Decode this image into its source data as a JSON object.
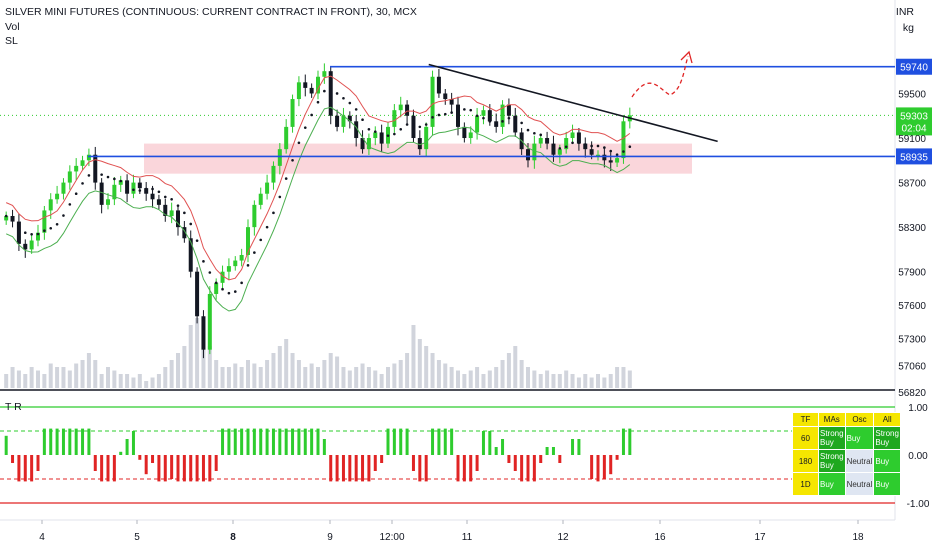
{
  "header": {
    "title": "SILVER MINI FUTURES (CONTINUOUS: CURRENT CONTRACT IN FRONT), 30, MCX",
    "line2": "Vol",
    "line3": "SL"
  },
  "currency": "INR",
  "unit": "kg",
  "colors": {
    "up": "#2ecc2e",
    "down": "#131722",
    "blue_line": "#1f4fe0",
    "zone": "#f8c8cf",
    "ma_red": "#e05252",
    "ma_green": "#4caf50",
    "vol": "#d1d4dc"
  },
  "chart_data": {
    "type": "candlestick",
    "x_ticks": [
      "4",
      "5",
      "8",
      "9",
      "12:00",
      "11",
      "12",
      "16",
      "17",
      "18"
    ],
    "price_axis": [
      "59500",
      "59100",
      "58700",
      "58300",
      "57900",
      "57600",
      "57300",
      "57060",
      "56820"
    ],
    "ylim": [
      56820,
      59980
    ],
    "levels": [
      {
        "label": "59740",
        "value": 59740,
        "color": "#1f4fe0"
      },
      {
        "label": "58935",
        "value": 58935,
        "color": "#1f4fe0"
      }
    ],
    "last_price": {
      "label": "59303",
      "countdown": "02:04",
      "value": 59303
    },
    "support_zone": [
      58780,
      59050
    ],
    "trendline": [
      [
        0.46,
        59760
      ],
      [
        0.77,
        59070
      ]
    ],
    "closes": [
      58400,
      58350,
      58150,
      58100,
      58180,
      58250,
      58450,
      58550,
      58600,
      58700,
      58800,
      58850,
      58900,
      58950,
      58700,
      58500,
      58550,
      58680,
      58720,
      58600,
      58700,
      58650,
      58600,
      58550,
      58500,
      58400,
      58450,
      58300,
      58200,
      57900,
      57500,
      57200,
      57700,
      57800,
      57900,
      57950,
      58000,
      58050,
      58300,
      58500,
      58600,
      58700,
      58850,
      59000,
      59200,
      59450,
      59600,
      59550,
      59500,
      59650,
      59700,
      59300,
      59200,
      59300,
      59250,
      59100,
      59000,
      59100,
      59150,
      59050,
      59200,
      59350,
      59400,
      59300,
      59100,
      59000,
      59200,
      59650,
      59500,
      59450,
      59400,
      59200,
      59100,
      59150,
      59300,
      59350,
      59250,
      59200,
      59400,
      59300,
      59150,
      59000,
      58900,
      59050,
      59100,
      59050,
      58950,
      59000,
      59100,
      59150,
      59050,
      59000,
      58950,
      58950,
      58900,
      58880,
      58920,
      59250,
      59303
    ],
    "volume_scale": [
      0.2,
      0.3,
      0.25,
      0.2,
      0.3,
      0.25,
      0.2,
      0.35,
      0.3,
      0.3,
      0.25,
      0.35,
      0.4,
      0.5,
      0.4,
      0.2,
      0.3,
      0.25,
      0.2,
      0.2,
      0.15,
      0.2,
      0.1,
      0.15,
      0.2,
      0.3,
      0.4,
      0.5,
      0.6,
      0.9,
      1.0,
      0.9,
      0.6,
      0.4,
      0.3,
      0.3,
      0.35,
      0.3,
      0.4,
      0.35,
      0.3,
      0.4,
      0.5,
      0.6,
      0.7,
      0.5,
      0.4,
      0.3,
      0.35,
      0.3,
      0.4,
      0.5,
      0.45,
      0.3,
      0.25,
      0.3,
      0.35,
      0.3,
      0.25,
      0.2,
      0.3,
      0.35,
      0.4,
      0.5,
      0.9,
      0.7,
      0.6,
      0.5,
      0.4,
      0.35,
      0.3,
      0.25,
      0.2,
      0.25,
      0.3,
      0.2,
      0.25,
      0.3,
      0.4,
      0.5,
      0.6,
      0.4,
      0.3,
      0.25,
      0.2,
      0.25,
      0.2,
      0.2,
      0.25,
      0.2,
      0.15,
      0.2,
      0.15,
      0.2,
      0.15,
      0.2,
      0.3,
      0.3,
      0.25
    ]
  },
  "oscillator": {
    "label": "T R",
    "levels": [
      "1.00",
      "0.00",
      "-1.00"
    ]
  },
  "signal_table": {
    "headers": [
      "TF",
      "MAs",
      "Osc",
      "All"
    ],
    "rows": [
      {
        "tf": "60",
        "mas": "Strong Buy",
        "osc": "Buy",
        "all": "Strong Buy"
      },
      {
        "tf": "180",
        "mas": "Strong Buy",
        "osc": "Neutral",
        "all": "Buy"
      },
      {
        "tf": "1D",
        "mas": "Buy",
        "osc": "Neutral",
        "all": "Buy"
      }
    ]
  }
}
